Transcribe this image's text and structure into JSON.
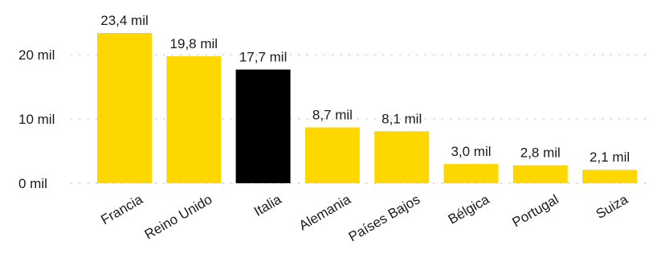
{
  "chart_data": {
    "type": "bar",
    "title": "",
    "xlabel": "",
    "ylabel": "",
    "categories": [
      "Francia",
      "Reino Unido",
      "Italia",
      "Alemania",
      "Países Bajos",
      "Bélgica",
      "Portugal",
      "Suiza"
    ],
    "values": [
      23400,
      19800,
      17700,
      8700,
      8100,
      3000,
      2800,
      2100
    ],
    "value_labels": [
      "23,4 mil",
      "19,8 mil",
      "17,7 mil",
      "8,7 mil",
      "8,1 mil",
      "3,0 mil",
      "2,8 mil",
      "2,1 mil"
    ],
    "y_ticks": [
      0,
      10000,
      20000
    ],
    "y_tick_labels": [
      "0 mil",
      "10 mil",
      "20 mil"
    ],
    "ylim": [
      0,
      23400
    ],
    "grid": true,
    "legend": "none",
    "colors": {
      "default_bar": "#FFD700",
      "highlight_bar": "#000000"
    },
    "highlight_category": "Italia"
  }
}
